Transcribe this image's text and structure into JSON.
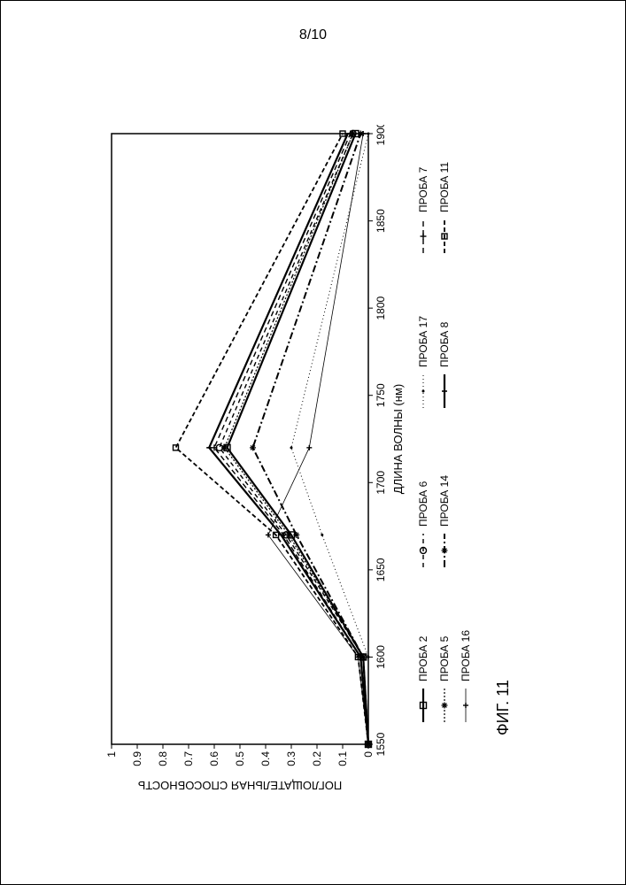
{
  "page_number": "8/10",
  "figure_caption": "ФИГ. 11",
  "chart": {
    "type": "line",
    "xlabel": "ДЛИНА ВОЛНЫ (нм)",
    "ylabel": "ПОГЛОЩАТЕЛЬНАЯ СПОСОБНОСТЬ",
    "xlim": [
      1550,
      1900
    ],
    "ylim": [
      0,
      1
    ],
    "xtick_step": 50,
    "ytick_step": 0.1,
    "xticks": [
      1550,
      1600,
      1650,
      1700,
      1750,
      1800,
      1850,
      1900
    ],
    "yticks": [
      0,
      0.1,
      0.2,
      0.3,
      0.4,
      0.5,
      0.6,
      0.7,
      0.8,
      0.9,
      1
    ],
    "background_color": "#ffffff",
    "axis_color": "#000000",
    "tick_len": 5,
    "series_x": [
      1550,
      1600,
      1670,
      1720,
      1900
    ],
    "series": [
      {
        "name": "ПРОБА 2",
        "values": [
          0.0,
          0.02,
          0.3,
          0.55,
          0.05
        ],
        "color": "#000000",
        "width": 2.2,
        "dash": "",
        "marker": "square-open",
        "msize": 7
      },
      {
        "name": "ПРОБА 6",
        "values": [
          0.0,
          0.02,
          0.32,
          0.58,
          0.06
        ],
        "color": "#000000",
        "width": 1.4,
        "dash": "5 4",
        "marker": "circle-open",
        "msize": 7
      },
      {
        "name": "ПРОБА 17",
        "values": [
          0.0,
          0.0,
          0.18,
          0.3,
          0.0
        ],
        "color": "#000000",
        "width": 1.0,
        "dash": "1 3",
        "marker": "dot",
        "msize": 3
      },
      {
        "name": "ПРОБА 7",
        "values": [
          0.0,
          0.03,
          0.33,
          0.6,
          0.07
        ],
        "color": "#000000",
        "width": 1.4,
        "dash": "6 4",
        "marker": "plus",
        "msize": 7
      },
      {
        "name": "ПРОБА 5",
        "values": [
          0.0,
          0.02,
          0.31,
          0.56,
          0.06
        ],
        "color": "#000000",
        "width": 1.2,
        "dash": "2 2",
        "marker": "asterisk",
        "msize": 7
      },
      {
        "name": "ПРОБА 14",
        "values": [
          0.0,
          0.02,
          0.28,
          0.45,
          0.03
        ],
        "color": "#000000",
        "width": 2.0,
        "dash": "8 3 2 3",
        "marker": "asterisk",
        "msize": 7
      },
      {
        "name": "ПРОБА 8",
        "values": [
          0.0,
          0.03,
          0.34,
          0.62,
          0.08
        ],
        "color": "#000000",
        "width": 2.2,
        "dash": "",
        "marker": "tick",
        "msize": 6
      },
      {
        "name": "ПРОБА 11",
        "values": [
          0.0,
          0.04,
          0.36,
          0.75,
          0.1
        ],
        "color": "#000000",
        "width": 1.8,
        "dash": "5 3",
        "marker": "square-open",
        "msize": 6
      },
      {
        "name": "ПРОБА 16",
        "values": [
          0.0,
          0.04,
          0.39,
          0.23,
          0.02
        ],
        "color": "#000000",
        "width": 0.8,
        "dash": "",
        "marker": "plus",
        "msize": 6
      }
    ],
    "legend_rows": [
      [
        "ПРОБА 2",
        "ПРОБА 6",
        "ПРОБА 17",
        "ПРОБА 7"
      ],
      [
        "ПРОБА 5",
        "ПРОБА 14",
        "ПРОБА 8",
        "ПРОБА 11"
      ],
      [
        "ПРОБА 16"
      ]
    ]
  }
}
